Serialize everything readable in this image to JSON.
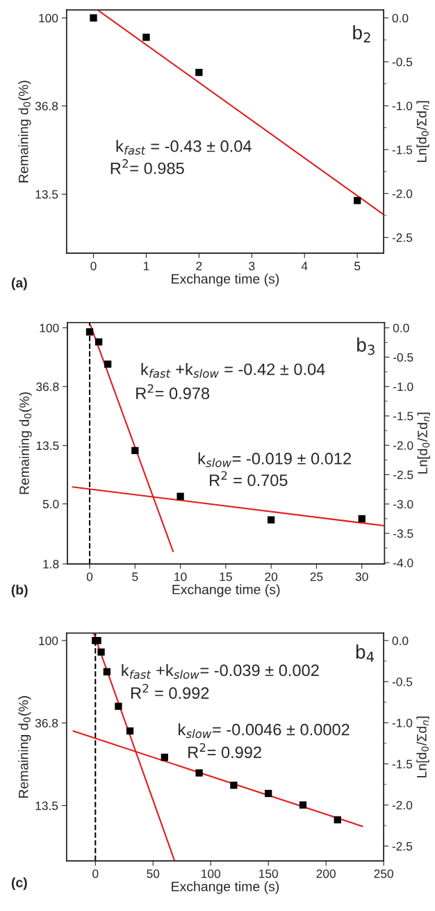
{
  "chart_data": [
    {
      "type": "scatter",
      "xlabel": "Exchange time (s)",
      "ylabel": "Remaining d$_{0}$(%)",
      "y2label": "Ln[d$_{0}$/Σd$_{n}$]",
      "log": "y",
      "xlim": [
        -0.51,
        5.5
      ],
      "xticks": [
        0,
        1,
        2,
        3,
        4,
        5
      ],
      "ylim": [
        6.9,
        109.4
      ],
      "yticks": [
        100,
        36.8,
        13.5
      ],
      "y2lim": [
        -2.68,
        0.09
      ],
      "y2ticks": [
        {
          "value": 0,
          "label": "0.0"
        },
        {
          "value": -0.5,
          "label": "-0.5"
        },
        {
          "value": -1,
          "label": "-1.0"
        },
        {
          "value": -1.5,
          "label": "-1.5"
        },
        {
          "value": -2,
          "label": "-2.0"
        },
        {
          "value": -2.5,
          "label": "-2.5"
        }
      ],
      "series": [
        {
          "axis": "y2",
          "color": "#000000",
          "marker": "square",
          "x": [
            0,
            1,
            2,
            5
          ],
          "values": [
            0.0,
            -0.22,
            -0.62,
            -2.08
          ]
        },
        {
          "axis": "y2",
          "type": "line",
          "color": "#e31a1c",
          "line_style": "solid",
          "x": [
            0.08,
            5.5
          ],
          "values": [
            0.09,
            -2.24
          ]
        }
      ],
      "annotations": [
        "(a)",
        "b$_{2}$",
        "k$_{fast}$ = -0.43 ± 0.04",
        "R$^{2}$= 0.985"
      ]
    },
    {
      "type": "scatter",
      "xlabel": "Exchange time (s)",
      "ylabel": "Remaining d$_{0}$(%)",
      "y2label": "Ln[d$_{0}$/Σd$_{n}$]",
      "log": "y",
      "xlim": [
        -2.45,
        32.5
      ],
      "xticks": [
        0,
        5,
        10,
        15,
        20,
        25,
        30
      ],
      "ylim": [
        1.8,
        109.4
      ],
      "yticks": [
        100,
        36.8,
        13.5,
        {
          "value": 5,
          "label": "5.0"
        },
        1.8
      ],
      "y2lim": [
        -4.02,
        0.09
      ],
      "y2ticks": [
        {
          "value": 0,
          "label": "0.0"
        },
        {
          "value": -0.5,
          "label": "-0.5"
        },
        {
          "value": -1,
          "label": "-1.0"
        },
        {
          "value": -1.5,
          "label": "-1.5"
        },
        {
          "value": -2,
          "label": "-2.0"
        },
        {
          "value": -2.5,
          "label": "-2.5"
        },
        {
          "value": -3,
          "label": "-3.0"
        },
        {
          "value": -3.5,
          "label": "-3.5"
        },
        {
          "value": -4,
          "label": "-4.0"
        }
      ],
      "series": [
        {
          "axis": "y2",
          "color": "#000000",
          "marker": "square",
          "x": [
            0,
            1,
            2,
            5,
            10,
            20,
            30
          ],
          "values": [
            -0.07,
            -0.24,
            -0.62,
            -2.09,
            -2.87,
            -3.27,
            -3.25
          ]
        },
        {
          "axis": "y2",
          "type": "line",
          "color": "#e31a1c",
          "line_style": "solid",
          "x": [
            0.1,
            9.2
          ],
          "values": [
            0.04,
            -3.81
          ]
        },
        {
          "axis": "y2",
          "type": "line",
          "color": "#e31a1c",
          "line_style": "solid",
          "x": [
            -1.87,
            32.5
          ],
          "values": [
            -2.71,
            -3.37
          ]
        }
      ],
      "ref_lines": [
        {
          "axis": "x",
          "value": 0,
          "color": "#000000",
          "line_style": "dashed"
        }
      ],
      "annotations": [
        "(b)",
        "b$_{3}$",
        "k$_{fast}$ +k$_{slow}$ = -0.42 ± 0.04",
        "R$^{2}$= 0.978",
        "k$_{slow}$= -0.019 ± 0.012",
        "R$^{2}$ = 0.705"
      ]
    },
    {
      "type": "scatter",
      "xlabel": "Exchange time (s)",
      "ylabel": "Remaining d$_{0}$(%)",
      "y2label": "Ln[d$_{0}$/Σd$_{n}$]",
      "log": "y",
      "xlim": [
        -25,
        250
      ],
      "xticks": [
        0,
        50,
        100,
        150,
        200,
        250
      ],
      "ylim": [
        6.9,
        109.4
      ],
      "yticks": [
        100,
        36.8,
        13.5
      ],
      "y2lim": [
        -2.68,
        0.09
      ],
      "y2ticks": [
        {
          "value": 0,
          "label": "0.0"
        },
        {
          "value": -0.5,
          "label": "-0.5"
        },
        {
          "value": -1,
          "label": "-1.0"
        },
        {
          "value": -1.5,
          "label": "-1.5"
        },
        {
          "value": -2,
          "label": "-2.0"
        },
        {
          "value": -2.5,
          "label": "-2.5"
        }
      ],
      "series": [
        {
          "axis": "y2",
          "color": "#000000",
          "marker": "square",
          "x": [
            0,
            2,
            5,
            10,
            20,
            30,
            60,
            90,
            120,
            150,
            180,
            210
          ],
          "values": [
            0.0,
            0.0,
            -0.14,
            -0.38,
            -0.8,
            -1.1,
            -1.42,
            -1.61,
            -1.76,
            -1.86,
            -2.0,
            -2.18
          ]
        },
        {
          "axis": "y2",
          "type": "line",
          "color": "#e31a1c",
          "line_style": "solid",
          "x": [
            -1.5,
            68.7
          ],
          "values": [
            0.09,
            -2.68
          ]
        },
        {
          "axis": "y2",
          "type": "line",
          "color": "#e31a1c",
          "line_style": "solid",
          "x": [
            -19.1,
            231.6
          ],
          "values": [
            -1.1,
            -2.26
          ]
        }
      ],
      "ref_lines": [
        {
          "axis": "x",
          "value": 0,
          "color": "#000000",
          "line_style": "dashed"
        }
      ],
      "annotations": [
        "(c)",
        "b$_{4}$",
        "k$_{fast}$ +k$_{slow}$= -0.039 ± 0.002",
        "R$^{2}$ = 0.992",
        "k$_{slow}$= -0.0046 ± 0.0002",
        "R$^{2}$= 0.992"
      ]
    }
  ]
}
